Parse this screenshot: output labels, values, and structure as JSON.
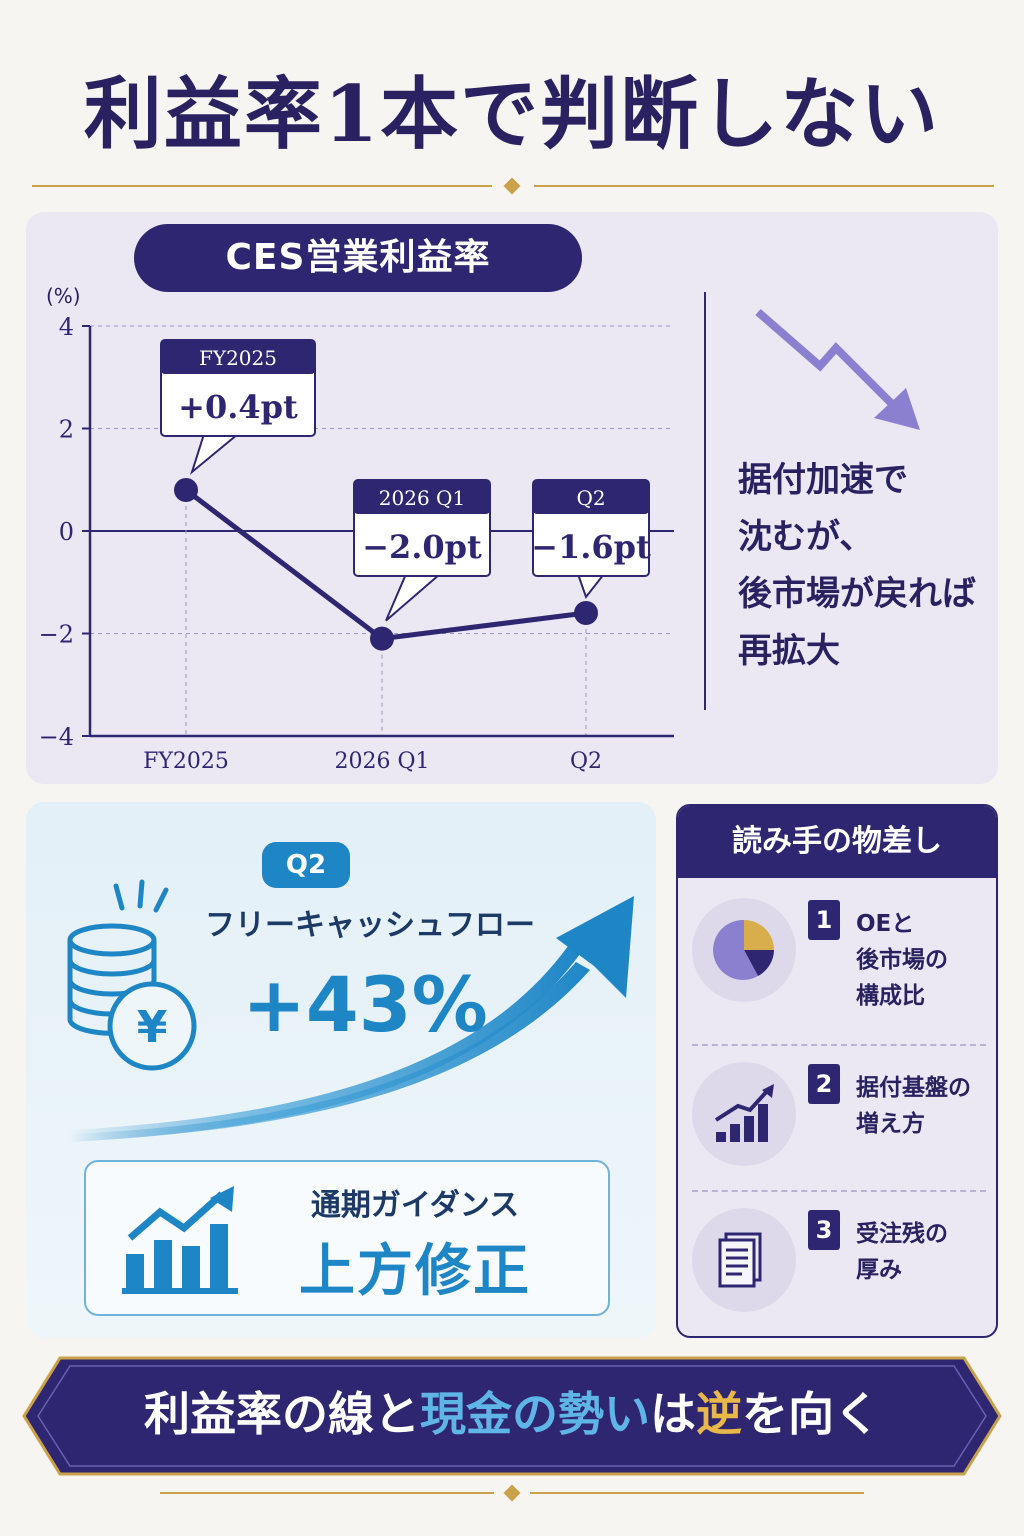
{
  "title": "利益率1本で判断しない",
  "chart_panel": {
    "pill": "CES営業利益率",
    "unit": "(%)",
    "side_text": [
      "据付加速で",
      "沈むが、",
      "後市場が戻れば",
      "再拡大"
    ]
  },
  "chart_data": {
    "type": "line",
    "title": "CES営業利益率",
    "ylabel": "(%)",
    "categories": [
      "FY2025",
      "2026 Q1",
      "Q2"
    ],
    "yticks": [
      "4",
      "2",
      "0",
      "−2",
      "−4"
    ],
    "ylim": [
      -4,
      4
    ],
    "values": [
      0.8,
      -2.1,
      -1.6
    ],
    "annotations": [
      {
        "period": "FY2025",
        "change": "+0.4pt"
      },
      {
        "period": "2026 Q1",
        "change": "−2.0pt"
      },
      {
        "period": "Q2",
        "change": "−1.6pt"
      }
    ],
    "grid": true,
    "colors": {
      "line": "#2f2672",
      "accent": "#8b7fd0"
    }
  },
  "fcf_panel": {
    "badge": "Q2",
    "label": "フリーキャッシュフロー",
    "value": "+43%",
    "coin_symbol": "¥",
    "guidance_top": "通期ガイダンス",
    "guidance_main": "上方修正",
    "icons": [
      "coins-yen-icon",
      "rising-arrow-icon",
      "bar-growth-icon"
    ]
  },
  "reader_panel": {
    "heading": "読み手の物差し",
    "items": [
      {
        "num": "1",
        "text": "OEと\n後市場の\n構成比",
        "icon": "pie-chart-icon"
      },
      {
        "num": "2",
        "text": "据付基盤の\n増え方",
        "icon": "bar-chart-icon"
      },
      {
        "num": "3",
        "text": "受注残の\n厚み",
        "icon": "document-icon"
      }
    ]
  },
  "banner": {
    "part1": "利益率の線と",
    "part2": "現金の勢い",
    "part3": "は",
    "part4": "逆",
    "part5": "を向く"
  },
  "colors": {
    "navy": "#2f2672",
    "gold": "#c9a24a",
    "blue": "#1f86c6",
    "lavender": "#8b7fd0",
    "pie_gold": "#d8ad4c"
  }
}
